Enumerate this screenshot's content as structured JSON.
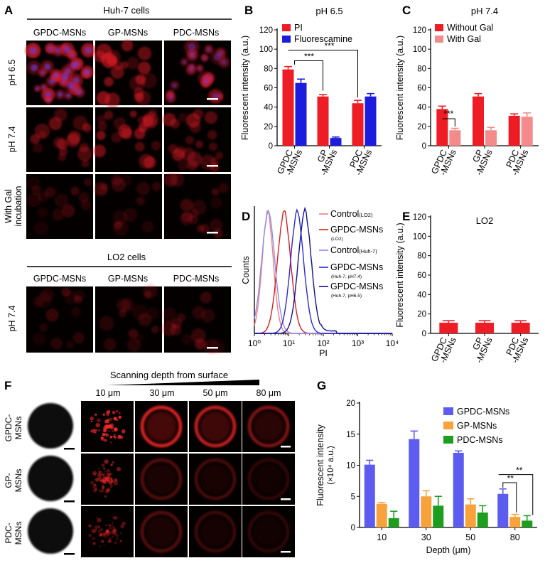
{
  "panel_letters": [
    "A",
    "B",
    "C",
    "D",
    "E",
    "F",
    "G"
  ],
  "panelA": {
    "huh7_title": "Huh-7 cells",
    "columns": [
      "GPDC-MSNs",
      "GP-MSNs",
      "PDC-MSNs"
    ],
    "rows": [
      "pH 6.5",
      "pH 7.4",
      "With Gal incubation"
    ],
    "lo2_title": "LO2 cells",
    "lo2_columns": [
      "GPDC-MSNs",
      "GP-MSNs",
      "PDC-MSNs"
    ],
    "lo2_row": "pH 7.4"
  },
  "panelF": {
    "depth_title": "Scanning depth from surface",
    "depths": [
      "10 μm",
      "30 μm",
      "50 μm",
      "80 μm"
    ],
    "rows": [
      "GPDC-MSNs",
      "GP-MSNs",
      "PDC-MSNs"
    ]
  },
  "colors": {
    "pi": "#ee1c24",
    "fluorescamine": "#1c1cdc",
    "with_gal": "#f58a8a",
    "gpdc": "#5c5cf0",
    "gp": "#f7a23a",
    "pdc": "#1e9e1e",
    "d_control_lo2": "#f27e7e",
    "d_gpdc_lo2": "#d81e1e",
    "d_control_huh7": "#8c8cee",
    "d_gpdc_huh7_74": "#2a2ad4",
    "d_gpdc_huh7_65": "#101096"
  },
  "chart_data": [
    {
      "id": "B",
      "type": "bar",
      "title": "pH 6.5",
      "ylabel": "Fluorescent intensity (a.u.)",
      "ylim": [
        0,
        120
      ],
      "yticks": [
        0,
        20,
        40,
        60,
        80,
        100,
        120
      ],
      "categories": [
        "GPDC\n-MSNs",
        "GP\n-MSNs",
        "PDC\n-MSNs"
      ],
      "series": [
        {
          "name": "PI",
          "values": [
            79,
            51,
            44
          ],
          "errors": [
            3,
            2,
            3
          ]
        },
        {
          "name": "Fluorescamine",
          "values": [
            65,
            8,
            51
          ],
          "errors": [
            4,
            1,
            3
          ]
        }
      ],
      "annotations": [
        "***",
        "***"
      ],
      "legend": "top-right"
    },
    {
      "id": "C",
      "type": "bar",
      "title": "pH 7.4",
      "ylabel": "Fluorescent intensity (a.u.)",
      "ylim": [
        0,
        120
      ],
      "yticks": [
        0,
        20,
        40,
        60,
        80,
        100,
        120
      ],
      "categories": [
        "GPDC\n-MSNs",
        "GP\n-MSNs",
        "PDC\n-MSNs"
      ],
      "series": [
        {
          "name": "Without Gal",
          "values": [
            38,
            51,
            31
          ],
          "errors": [
            3,
            3,
            2
          ]
        },
        {
          "name": "With Gal",
          "values": [
            16,
            16,
            30
          ],
          "errors": [
            2,
            3,
            4
          ]
        }
      ],
      "annotations": [
        "***"
      ],
      "legend": "top-left"
    },
    {
      "id": "D",
      "type": "line",
      "title": "",
      "xlabel": "PI",
      "ylabel": "Counts",
      "xscale": "log",
      "xlim": [
        1,
        10000
      ],
      "xticks": [
        "10⁰",
        "10¹",
        "10²",
        "10³",
        "10⁴"
      ],
      "series": [
        {
          "name": "Control",
          "name_sub": "(LO2)",
          "mode": 2.5,
          "width": 0.17
        },
        {
          "name": "GPDC-MSNs",
          "name_sub": "(LO2)",
          "mode": 7.5,
          "width": 0.2
        },
        {
          "name": "Control",
          "name_sub": "(Huh-7)",
          "mode": 2.6,
          "width": 0.2
        },
        {
          "name": "GPDC-MSNs",
          "name_sub": "(Huh-7, pH7.4)",
          "mode": 18,
          "width": 0.2
        },
        {
          "name": "GPDC-MSNs",
          "name_sub": "(Huh-7, pH6.5)",
          "mode": 30,
          "width": 0.2
        }
      ],
      "legend": "right"
    },
    {
      "id": "E",
      "type": "bar",
      "title": "LO2",
      "ylabel": "Fluorescent intensity (a.u.)",
      "ylim": [
        0,
        120
      ],
      "yticks": [
        0,
        20,
        40,
        60,
        80,
        100,
        120
      ],
      "categories": [
        "GPDC\n-MSNs",
        "GP\n-MSNs",
        "PDC\n-MSNs"
      ],
      "series": [
        {
          "name": "",
          "values": [
            11,
            11,
            11
          ],
          "errors": [
            2,
            2,
            2
          ]
        }
      ]
    },
    {
      "id": "G",
      "type": "bar",
      "title": "",
      "xlabel": "Depth (μm)",
      "ylabel": "Fluorescent intensity",
      "ylabel2": "(×10⁴ a.u.)",
      "ylim": [
        0,
        20
      ],
      "yticks": [
        0,
        5,
        10,
        15,
        20
      ],
      "categories": [
        "10",
        "30",
        "50",
        "80"
      ],
      "series": [
        {
          "name": "GPDC-MSNs",
          "values": [
            10.1,
            14.2,
            12.0,
            5.4
          ],
          "errors": [
            0.7,
            1.3,
            0.3,
            0.8
          ]
        },
        {
          "name": "GP-MSNs",
          "values": [
            3.8,
            5.0,
            3.7,
            1.7
          ],
          "errors": [
            0.2,
            0.9,
            0.9,
            0.4
          ]
        },
        {
          "name": "PDC-MSNs",
          "values": [
            1.5,
            3.5,
            2.4,
            1.1
          ],
          "errors": [
            1.1,
            1.5,
            1.1,
            0.8
          ]
        }
      ],
      "annotations": [
        "**",
        "**"
      ],
      "legend": "top-right"
    }
  ]
}
